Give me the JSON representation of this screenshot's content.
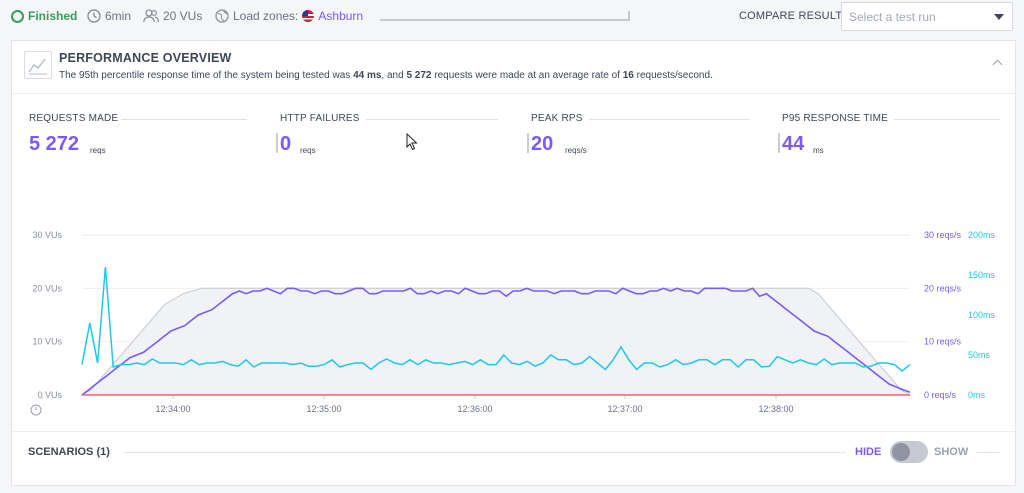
{
  "topbar": {
    "status": "Finished",
    "duration": "6min",
    "vus": "20 VUs",
    "load_zones_label": "Load zones:",
    "load_zone": "Ashburn",
    "compare_label": "COMPARE RESULT",
    "compare_placeholder": "Select a test run"
  },
  "overview": {
    "title": "PERFORMANCE OVERVIEW",
    "desc_1": "The 95th percentile response time of the system being tested was ",
    "p95": "44 ms",
    "desc_2": ", and ",
    "requests": "5 272",
    "desc_3": " requests were made at an average rate of ",
    "rate": "16",
    "desc_4": " requests/second."
  },
  "metrics": [
    {
      "title": "REQUESTS MADE",
      "value": "5 272",
      "unit": "reqs"
    },
    {
      "title": "HTTP FAILURES",
      "value": "0",
      "unit": "reqs"
    },
    {
      "title": "PEAK RPS",
      "value": "20",
      "unit": "reqs/s"
    },
    {
      "title": "P95 RESPONSE TIME",
      "value": "44",
      "unit": "ms"
    }
  ],
  "chart_data": {
    "type": "line",
    "x_ticks": [
      "12:34:00",
      "12:35:00",
      "12:36:00",
      "12:37:00",
      "12:38:00"
    ],
    "y_left_ticks": [
      "0 VUs",
      "10 VUs",
      "20 VUs",
      "30 VUs"
    ],
    "y_right_rps_ticks": [
      "0 reqs/s",
      "10 reqs/s",
      "20 reqs/s",
      "30 reqs/s"
    ],
    "y_right_ms_ticks": [
      "0ms",
      "50ms",
      "100ms",
      "150ms",
      "200ms"
    ],
    "ylim_vus": [
      0,
      30
    ],
    "ylim_ms": [
      0,
      200
    ],
    "colors": {
      "vus": "#c4c8d0",
      "rps": "#7a5af8",
      "response": "#1fc8e6",
      "failures": "#e8676b"
    },
    "series": [
      {
        "name": "vus",
        "values": [
          0,
          1,
          3,
          5,
          7,
          9,
          11,
          13,
          15,
          17,
          18,
          19,
          19.5,
          20,
          20,
          20,
          20,
          20,
          20,
          20,
          20,
          20,
          20,
          20,
          20,
          20,
          20,
          20,
          20,
          20,
          20,
          20,
          20,
          20,
          20,
          20,
          20,
          20,
          20,
          20,
          20,
          20,
          20,
          20,
          20,
          20,
          20,
          20,
          20,
          20,
          20,
          20,
          20,
          20,
          20,
          20,
          20,
          20,
          20,
          20,
          20,
          20,
          20,
          20,
          20,
          20,
          20,
          20,
          20,
          20,
          20,
          20,
          20,
          20,
          20,
          20,
          20,
          20,
          20,
          20,
          19,
          17,
          15,
          13,
          11,
          9,
          7,
          5,
          3,
          1,
          0
        ]
      },
      {
        "name": "rps",
        "values": [
          0,
          1,
          2,
          3,
          4,
          5,
          6,
          7,
          7.5,
          8,
          9,
          10,
          11,
          12,
          12.5,
          13,
          14,
          15,
          15.5,
          16,
          17,
          18,
          19,
          19.5,
          19,
          19.5,
          19.5,
          20,
          19.5,
          19,
          20,
          20,
          19.5,
          19.5,
          19,
          19.5,
          19.5,
          19,
          19,
          19.5,
          20,
          20,
          19,
          19,
          19.5,
          19.5,
          19.5,
          19.5,
          20,
          19,
          19,
          19.5,
          19,
          19.5,
          19.5,
          19,
          20,
          19.5,
          19,
          19,
          19.5,
          19.5,
          18.5,
          19.5,
          19.5,
          20,
          19.5,
          19.5,
          19.5,
          19,
          19.5,
          19.5,
          19.5,
          19,
          19,
          19.5,
          19.5,
          19.5,
          19,
          20,
          19.5,
          19,
          19,
          19.5,
          19.5,
          20,
          19.5,
          20,
          19.5,
          19.5,
          19,
          20,
          20,
          20,
          20,
          19.5,
          19.5,
          19.5,
          20,
          18.5,
          19,
          18,
          17,
          16,
          15,
          14,
          13,
          12,
          11.5,
          11,
          10,
          9,
          8,
          7,
          6,
          5,
          4,
          3,
          2,
          1.5,
          1,
          0.5
        ]
      },
      {
        "name": "response_ms",
        "values": [
          38,
          90,
          40,
          160,
          35,
          38,
          38,
          40,
          38,
          45,
          40,
          40,
          40,
          38,
          44,
          38,
          40,
          40,
          42,
          38,
          36,
          44,
          35,
          40,
          40,
          40,
          40,
          38,
          40,
          36,
          36,
          38,
          44,
          35,
          38,
          40,
          40,
          32,
          40,
          45,
          40,
          38,
          44,
          38,
          44,
          40,
          40,
          38,
          40,
          42,
          38,
          44,
          38,
          38,
          50,
          40,
          38,
          42,
          36,
          40,
          50,
          44,
          44,
          38,
          40,
          48,
          40,
          32,
          44,
          60,
          44,
          32,
          40,
          40,
          35,
          38,
          44,
          38,
          40,
          44,
          44,
          38,
          44,
          44,
          35,
          44,
          44,
          35,
          36,
          48,
          44,
          40,
          44,
          40,
          38,
          45,
          38,
          40,
          40,
          40,
          35,
          36,
          40,
          40,
          38,
          30,
          38
        ]
      },
      {
        "name": "http_failures",
        "values": [
          0,
          0,
          0,
          0,
          0
        ]
      }
    ]
  },
  "scenarios": {
    "title": "SCENARIOS (1)",
    "hide": "HIDE",
    "show": "SHOW"
  }
}
